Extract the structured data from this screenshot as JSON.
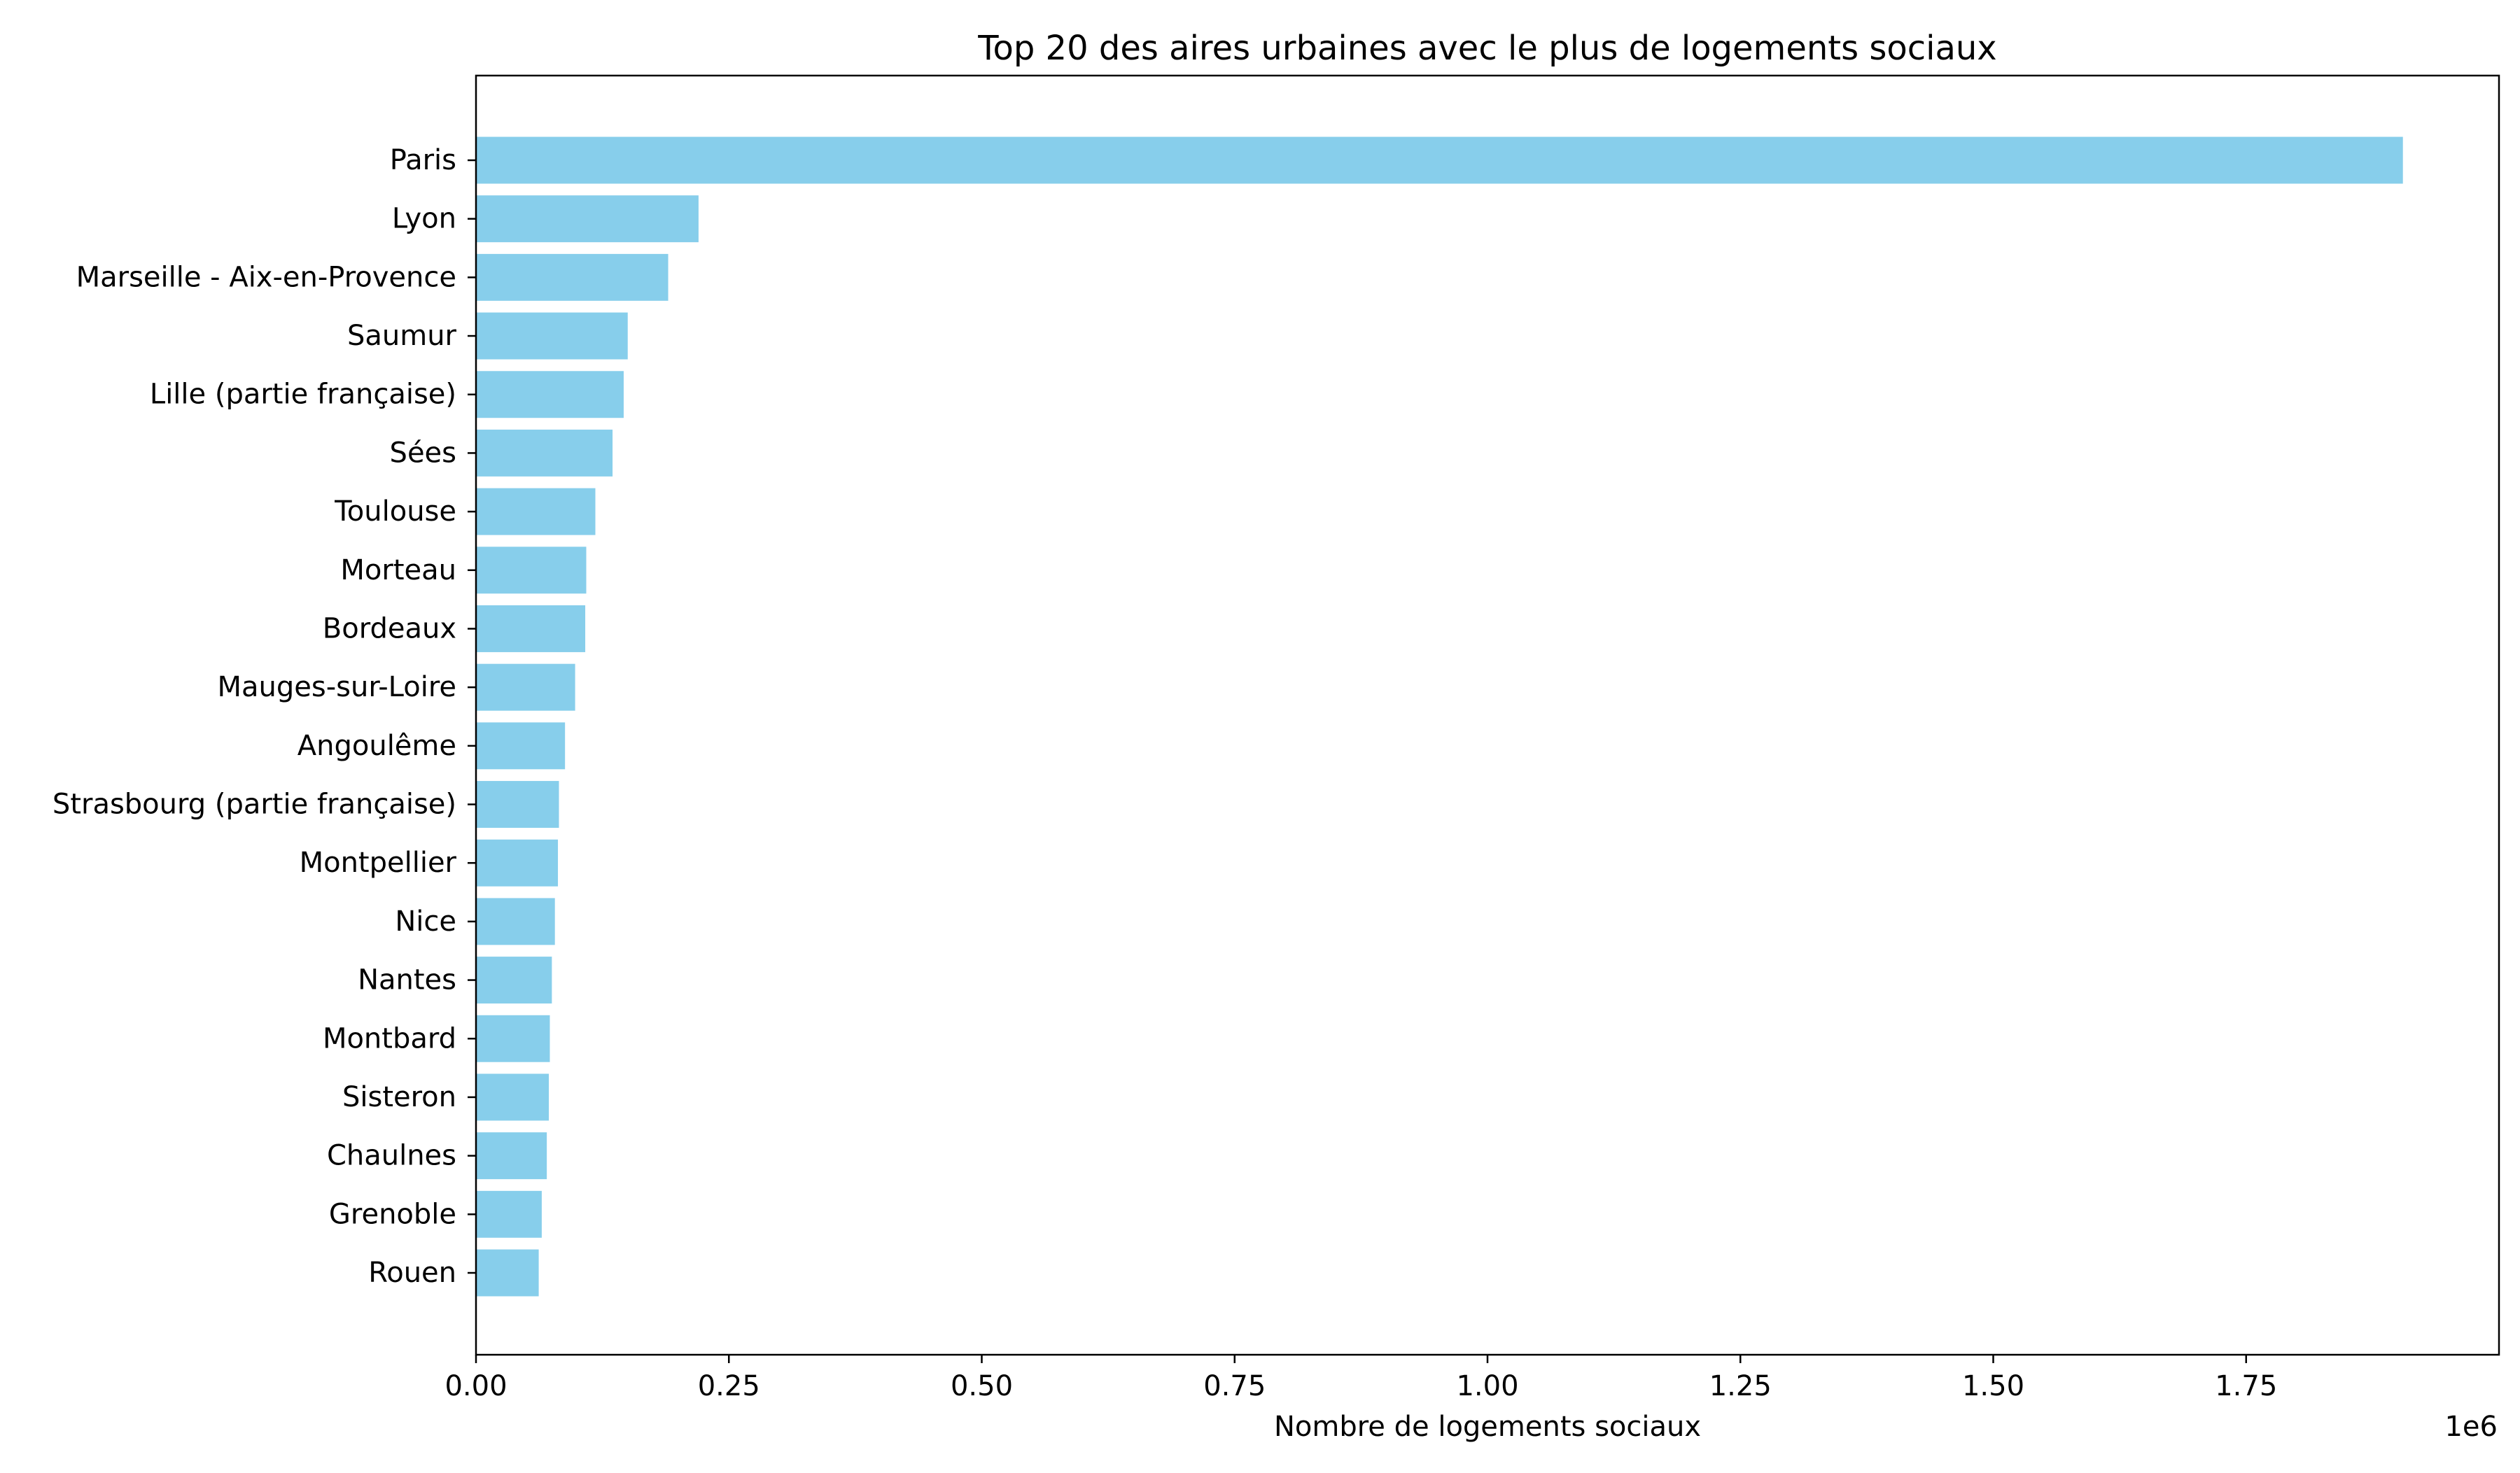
{
  "chart_data": {
    "type": "bar",
    "orientation": "horizontal",
    "title": "Top 20 des aires urbaines avec le plus de logements sociaux",
    "xlabel": "Nombre de logements sociaux",
    "ylabel": "",
    "x_offset_label": "1e6",
    "xlim": [
      0,
      2000000
    ],
    "x_ticks": [
      {
        "value": 0,
        "label": "0.00"
      },
      {
        "value": 250000,
        "label": "0.25"
      },
      {
        "value": 500000,
        "label": "0.50"
      },
      {
        "value": 750000,
        "label": "0.75"
      },
      {
        "value": 1000000,
        "label": "1.00"
      },
      {
        "value": 1250000,
        "label": "1.25"
      },
      {
        "value": 1500000,
        "label": "1.50"
      },
      {
        "value": 1750000,
        "label": "1.75"
      }
    ],
    "grid": false,
    "legend": "none",
    "bar_color": "#87ceeb",
    "categories": [
      "Paris",
      "Lyon",
      "Marseille - Aix-en-Provence",
      "Saumur",
      "Lille (partie française)",
      "Sées",
      "Toulouse",
      "Morteau",
      "Bordeaux",
      "Mauges-sur-Loire",
      "Angoulême",
      "Strasbourg (partie française)",
      "Montpellier",
      "Nice",
      "Nantes",
      "Montbard",
      "Sisteron",
      "Chaulnes",
      "Grenoble",
      "Rouen"
    ],
    "values": [
      1905000,
      220000,
      190000,
      150000,
      146000,
      135000,
      118000,
      109000,
      108000,
      98000,
      88000,
      82000,
      81000,
      78000,
      75000,
      73000,
      72000,
      70000,
      65000,
      62000
    ]
  }
}
